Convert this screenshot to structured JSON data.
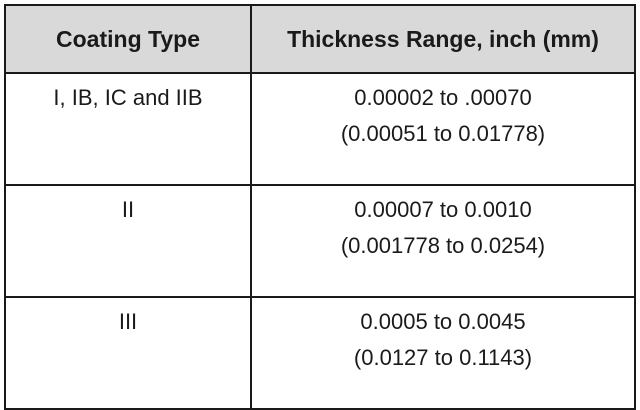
{
  "table": {
    "headers": [
      "Coating Type",
      "Thickness Range, inch (mm)"
    ],
    "rows": [
      {
        "type": "I, IB, IC and IIB",
        "inch": "0.00002 to .00070",
        "mm": "(0.00051 to 0.01778)"
      },
      {
        "type": "II",
        "inch": "0.00007 to 0.0010",
        "mm": "(0.001778 to 0.0254)"
      },
      {
        "type": "III",
        "inch": "0.0005 to 0.0045",
        "mm": "(0.0127 to 0.1143)"
      }
    ],
    "colors": {
      "header_bg": "#d9d9d9",
      "border": "#1a1a1a",
      "text": "#1a1a1a"
    }
  }
}
